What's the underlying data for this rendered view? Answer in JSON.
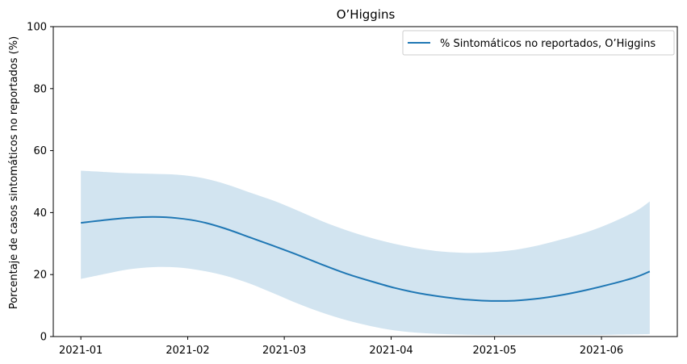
{
  "chart_data": {
    "type": "line",
    "title": "O’Higgins",
    "xlabel": "",
    "ylabel": "Porcentaje de casos sintomáticos no reportados (%)",
    "ylim": [
      0,
      100
    ],
    "xlim": [
      "2020-12-24",
      "2021-06-23"
    ],
    "y_ticks": [
      0,
      20,
      40,
      60,
      80,
      100
    ],
    "x_ticks": [
      "2021-01",
      "2021-02",
      "2021-03",
      "2021-04",
      "2021-05",
      "2021-06"
    ],
    "x_tick_dates": [
      "2021-01-01",
      "2021-02-01",
      "2021-03-01",
      "2021-04-01",
      "2021-05-01",
      "2021-06-01"
    ],
    "grid": false,
    "legend_position": "top-right",
    "series": [
      {
        "name": "% Sintomáticos no reportados, O’Higgins",
        "color": "#1f77b4",
        "band_color": "#1f77b4",
        "band_opacity": 0.2,
        "x": [
          "2021-01-01",
          "2021-01-08",
          "2021-01-15",
          "2021-01-22",
          "2021-01-29",
          "2021-02-05",
          "2021-02-12",
          "2021-02-19",
          "2021-02-26",
          "2021-03-05",
          "2021-03-12",
          "2021-03-19",
          "2021-03-26",
          "2021-04-02",
          "2021-04-09",
          "2021-04-16",
          "2021-04-23",
          "2021-04-30",
          "2021-05-07",
          "2021-05-14",
          "2021-05-21",
          "2021-05-28",
          "2021-06-04",
          "2021-06-11",
          "2021-06-15"
        ],
        "values": [
          36.7,
          37.6,
          38.3,
          38.6,
          38.2,
          37.0,
          34.8,
          32.0,
          29.2,
          26.3,
          23.2,
          20.3,
          17.9,
          15.7,
          14.0,
          12.8,
          11.9,
          11.5,
          11.6,
          12.3,
          13.5,
          15.1,
          17.0,
          19.2,
          21.0
        ],
        "lower": [
          18.6,
          20.2,
          21.7,
          22.4,
          22.3,
          21.3,
          19.6,
          17.1,
          13.9,
          10.6,
          7.7,
          5.3,
          3.4,
          2.0,
          1.2,
          0.8,
          0.6,
          0.5,
          0.5,
          0.5,
          0.5,
          0.5,
          0.6,
          0.7,
          0.8
        ],
        "upper": [
          53.5,
          53.1,
          52.7,
          52.5,
          52.2,
          51.2,
          49.2,
          46.5,
          43.8,
          40.6,
          37.2,
          34.3,
          31.9,
          29.9,
          28.4,
          27.4,
          27.0,
          27.2,
          28.0,
          29.5,
          31.5,
          33.8,
          36.8,
          40.5,
          43.6
        ]
      }
    ]
  }
}
